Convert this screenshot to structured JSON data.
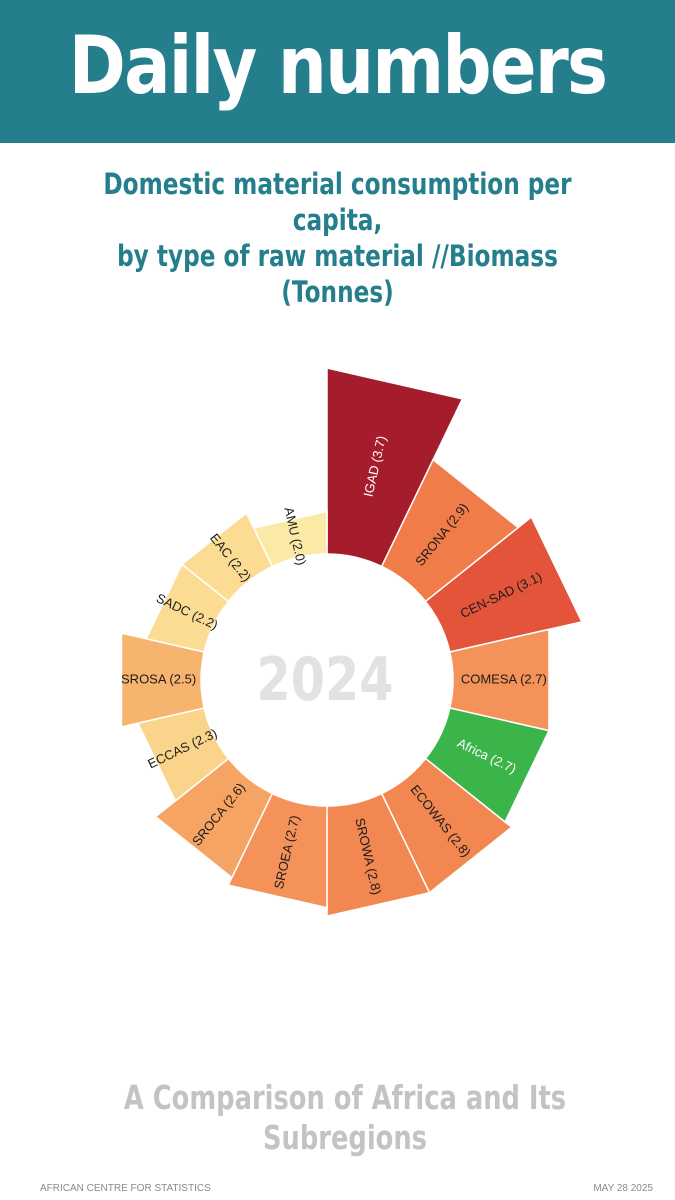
{
  "header": {
    "title": "Daily numbers",
    "subtitle_line1": "Domestic material consumption per capita,",
    "subtitle_line2": "by type of raw material //Biomass (Tonnes)"
  },
  "center_label": "2024",
  "caption": "A Comparison of Africa and Its Subregions",
  "footer": {
    "source": "AFRICAN CENTRE FOR STATISTICS",
    "date": "MAY 28 2025"
  },
  "colors": {
    "header_band": "#257e8c",
    "africa": "#3bb54a",
    "scale_low": "#fbeaa5",
    "scale_high": "#a51c2d"
  },
  "chart_data": {
    "type": "radial-bar",
    "title": "Domestic material consumption per capita, by type of raw material //Biomass (Tonnes)",
    "center_text": "2024",
    "unit": "Tonnes",
    "categories": [
      "IGAD",
      "SRONA",
      "CEN-SAD",
      "COMESA",
      "Africa",
      "ECOWAS",
      "SROWA",
      "SROEA",
      "SROCA",
      "ECCAS",
      "SROSA",
      "SADC",
      "EAC",
      "AMU"
    ],
    "values": [
      3.7,
      2.9,
      3.1,
      2.7,
      2.7,
      2.8,
      2.8,
      2.7,
      2.6,
      2.3,
      2.5,
      2.2,
      2.2,
      2.0
    ],
    "labels": [
      "IGAD (3.7)",
      "SRONA (2.9)",
      "CEN-SAD (3.1)",
      "COMESA (2.7)",
      "Africa (2.7)",
      "ECOWAS (2.8)",
      "SROWA (2.8)",
      "SROEA (2.7)",
      "SROCA (2.6)",
      "ECCAS (2.3)",
      "SROSA (2.5)",
      "SADC (2.2)",
      "EAC (2.2)",
      "AMU (2.0)"
    ],
    "colors": [
      "#a51c2d",
      "#f07c4a",
      "#e3543a",
      "#f4925a",
      "#3bb54a",
      "#f28752",
      "#f28752",
      "#f4925a",
      "#f5a463",
      "#fad48a",
      "#f7b46f",
      "#fbdc92",
      "#fbdc92",
      "#fbeaa5"
    ]
  }
}
